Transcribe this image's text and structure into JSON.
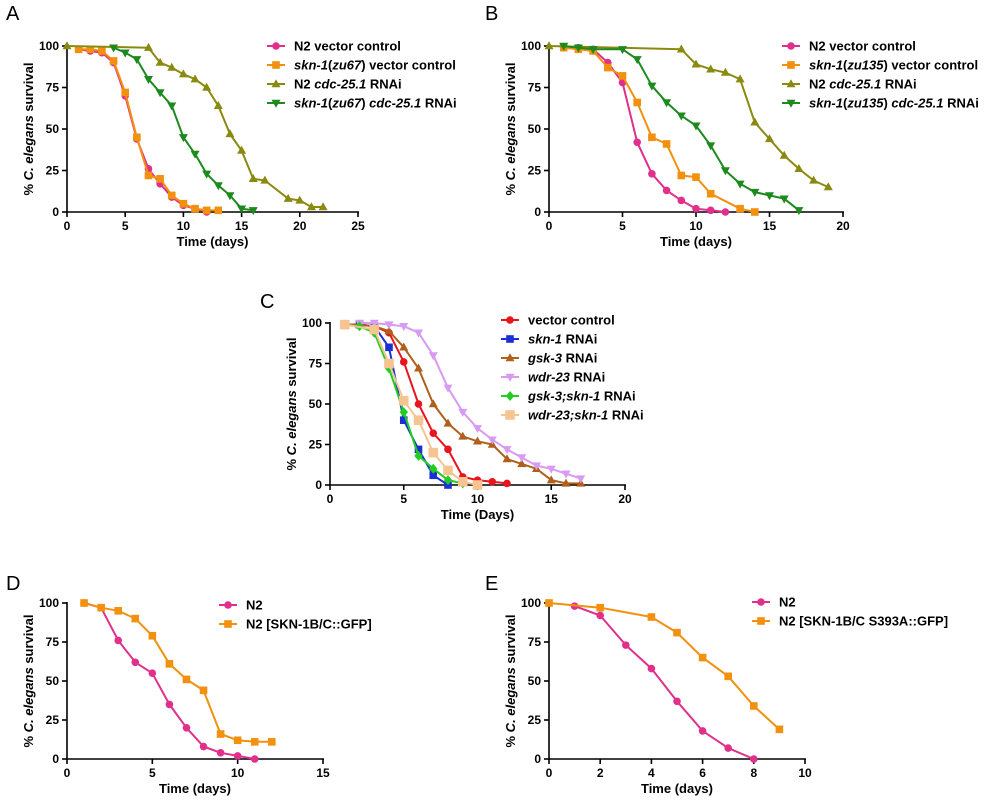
{
  "chart_data": [
    {
      "panel": "A",
      "type": "line",
      "ylabel_parts": [
        [
          "% ",
          false
        ],
        [
          "C. elegans",
          true
        ],
        [
          " survival",
          false
        ]
      ],
      "xlabel": "Time (days)",
      "xlim": [
        0,
        25
      ],
      "ylim": [
        0,
        100
      ],
      "xticks": [
        0,
        5,
        10,
        15,
        20,
        25
      ],
      "yticks": [
        0,
        25,
        50,
        75,
        100
      ],
      "legend": "top-right",
      "series": [
        {
          "name": "N2 vector control",
          "name_parts": [
            [
              "N2 vector control",
              false
            ]
          ],
          "color": "#e0308c",
          "marker": "circle",
          "x": [
            1,
            2,
            3,
            4,
            5,
            6,
            7,
            8,
            9,
            10,
            11,
            12
          ],
          "y": [
            98,
            97,
            96,
            90,
            70,
            44,
            26,
            17,
            9,
            4,
            2,
            0
          ]
        },
        {
          "name": "skn-1(zu67) vector control",
          "name_parts": [
            [
              "skn-1",
              true
            ],
            [
              "(",
              false
            ],
            [
              "zu67",
              true
            ],
            [
              ") vector control",
              false
            ]
          ],
          "color": "#f2900f",
          "marker": "square",
          "x": [
            1,
            2,
            3,
            4,
            5,
            6,
            7,
            8,
            9,
            10,
            11,
            12,
            13
          ],
          "y": [
            98,
            98,
            97,
            91,
            72,
            45,
            22,
            20,
            10,
            5,
            2,
            1,
            1
          ]
        },
        {
          "name": "N2 cdc-25.1 RNAi",
          "name_parts": [
            [
              "N2 ",
              false
            ],
            [
              "cdc-25.1",
              true
            ],
            [
              " RNAi",
              false
            ]
          ],
          "color": "#8a8a10",
          "marker": "triangle-up",
          "x": [
            0,
            7,
            8,
            9,
            10,
            11,
            12,
            13,
            14,
            15,
            16,
            17,
            19,
            20,
            21,
            22
          ],
          "y": [
            100,
            99,
            90,
            87,
            83,
            80,
            75,
            64,
            47,
            37,
            20,
            19,
            8,
            7,
            3,
            3
          ]
        },
        {
          "name": "skn-1(zu67) cdc-25.1 RNAi",
          "name_parts": [
            [
              "skn-1",
              true
            ],
            [
              "(",
              false
            ],
            [
              "zu67",
              true
            ],
            [
              ") ",
              false
            ],
            [
              "cdc-25.1",
              true
            ],
            [
              " RNAi",
              false
            ]
          ],
          "color": "#1c8a1c",
          "marker": "triangle-down",
          "x": [
            4,
            5,
            6,
            7,
            8,
            9,
            10,
            11,
            12,
            13,
            14,
            15,
            16
          ],
          "y": [
            99,
            96,
            92,
            80,
            72,
            64,
            45,
            35,
            23,
            16,
            10,
            2,
            1
          ]
        }
      ]
    },
    {
      "panel": "B",
      "type": "line",
      "ylabel_parts": [
        [
          "% ",
          false
        ],
        [
          "C. elegans",
          true
        ],
        [
          " survival",
          false
        ]
      ],
      "xlabel": "Time (days)",
      "xlim": [
        0,
        20
      ],
      "ylim": [
        0,
        100
      ],
      "xticks": [
        0,
        5,
        10,
        15,
        20
      ],
      "yticks": [
        0,
        25,
        50,
        75,
        100
      ],
      "legend": "top-right",
      "series": [
        {
          "name": "N2 vector control",
          "name_parts": [
            [
              "N2 vector control",
              false
            ]
          ],
          "color": "#e0308c",
          "marker": "circle",
          "x": [
            1,
            2,
            3,
            4,
            5,
            6,
            7,
            8,
            9,
            10,
            11,
            12
          ],
          "y": [
            99,
            99,
            98,
            90,
            78,
            42,
            23,
            13,
            7,
            2,
            1,
            0
          ]
        },
        {
          "name": "skn-1(zu135) vector control",
          "name_parts": [
            [
              "skn-1",
              true
            ],
            [
              "(",
              false
            ],
            [
              "zu135",
              true
            ],
            [
              ") vector control",
              false
            ]
          ],
          "color": "#f2900f",
          "marker": "square",
          "x": [
            1,
            2,
            3,
            4,
            5,
            6,
            7,
            8,
            9,
            10,
            11,
            13,
            14
          ],
          "y": [
            99,
            98,
            97,
            87,
            82,
            66,
            45,
            41,
            22,
            21,
            11,
            2,
            0
          ]
        },
        {
          "name": "N2 cdc-25.1 RNAi",
          "name_parts": [
            [
              "N2 ",
              false
            ],
            [
              "cdc-25.1",
              true
            ],
            [
              " RNAi",
              false
            ]
          ],
          "color": "#8a8a10",
          "marker": "triangle-up",
          "x": [
            0,
            9,
            10,
            11,
            12,
            13,
            14,
            15,
            16,
            17,
            18,
            19
          ],
          "y": [
            100,
            98,
            89,
            86,
            84,
            80,
            54,
            44,
            34,
            26,
            19,
            15
          ]
        },
        {
          "name": "skn-1(zu135) cdc-25.1 RNAi",
          "name_parts": [
            [
              "skn-1",
              true
            ],
            [
              "(",
              false
            ],
            [
              "zu135",
              true
            ],
            [
              ") ",
              false
            ],
            [
              "cdc-25.1",
              true
            ],
            [
              " RNAi",
              false
            ]
          ],
          "color": "#1c8a1c",
          "marker": "triangle-down",
          "x": [
            1,
            2,
            3,
            5,
            6,
            7,
            8,
            9,
            10,
            11,
            12,
            13,
            14,
            15,
            16,
            17
          ],
          "y": [
            100,
            99,
            98,
            98,
            92,
            76,
            66,
            58,
            52,
            40,
            25,
            17,
            12,
            10,
            8,
            1
          ]
        }
      ]
    },
    {
      "panel": "C",
      "type": "line",
      "ylabel_parts": [
        [
          "% ",
          false
        ],
        [
          "C. elegans",
          true
        ],
        [
          " survival",
          false
        ]
      ],
      "xlabel": "Time (Days)",
      "xlim": [
        0,
        20
      ],
      "ylim": [
        0,
        100
      ],
      "xticks": [
        0,
        5,
        10,
        15,
        20
      ],
      "yticks": [
        0,
        25,
        50,
        75,
        100
      ],
      "legend": "top-right",
      "series": [
        {
          "name": "vector control",
          "name_parts": [
            [
              "vector control",
              false
            ]
          ],
          "color": "#e8141e",
          "marker": "circle",
          "x": [
            1,
            2,
            3,
            4,
            5,
            6,
            7,
            8,
            9,
            10,
            11,
            12
          ],
          "y": [
            99,
            99,
            98,
            94,
            76,
            50,
            32,
            22,
            5,
            3,
            2,
            1
          ]
        },
        {
          "name": "skn-1 RNAi",
          "name_parts": [
            [
              "skn-1",
              true
            ],
            [
              " RNAi",
              false
            ]
          ],
          "color": "#1a2fd6",
          "marker": "square",
          "x": [
            1,
            2,
            3,
            4,
            5,
            6,
            7,
            8
          ],
          "y": [
            99,
            99,
            98,
            85,
            40,
            22,
            6,
            0
          ]
        },
        {
          "name": "gsk-3 RNAi",
          "name_parts": [
            [
              "gsk-3",
              true
            ],
            [
              " RNAi",
              false
            ]
          ],
          "color": "#b0601c",
          "marker": "triangle-up",
          "x": [
            1,
            2,
            3,
            4,
            5,
            6,
            7,
            8,
            9,
            10,
            11,
            12,
            13,
            14,
            15,
            16,
            17
          ],
          "y": [
            99,
            99,
            98,
            95,
            85,
            72,
            50,
            38,
            30,
            27,
            25,
            16,
            13,
            10,
            3,
            1,
            1
          ]
        },
        {
          "name": "wdr-23 RNAi",
          "name_parts": [
            [
              "wdr-23",
              true
            ],
            [
              " RNAi",
              false
            ]
          ],
          "color": "#d89af2",
          "marker": "triangle-down",
          "x": [
            2,
            3,
            4,
            5,
            6,
            7,
            8,
            9,
            10,
            11,
            12,
            13,
            14,
            15,
            16,
            17
          ],
          "y": [
            100,
            100,
            99,
            98,
            94,
            80,
            60,
            45,
            35,
            28,
            22,
            17,
            12,
            10,
            7,
            4
          ]
        },
        {
          "name": "gsk-3;skn-1 RNAi",
          "name_parts": [
            [
              "gsk-3;skn-1",
              true
            ],
            [
              " RNAi",
              false
            ]
          ],
          "color": "#22cc22",
          "marker": "diamond",
          "x": [
            1,
            2,
            3,
            4,
            5,
            6,
            7,
            8,
            9
          ],
          "y": [
            99,
            98,
            94,
            72,
            45,
            18,
            10,
            3,
            1
          ]
        },
        {
          "name": "wdr-23;skn-1 RNAi",
          "name_parts": [
            [
              "wdr-23;skn-1",
              true
            ],
            [
              " RNAi",
              false
            ]
          ],
          "color": "#f5c490",
          "marker": "square-big",
          "x": [
            1,
            3,
            4,
            5,
            6,
            7,
            8,
            9,
            10
          ],
          "y": [
            99,
            96,
            75,
            52,
            40,
            20,
            9,
            2,
            0
          ]
        }
      ]
    },
    {
      "panel": "D",
      "type": "line",
      "ylabel_parts": [
        [
          "% ",
          false
        ],
        [
          "C. elegans",
          true
        ],
        [
          " survival",
          false
        ]
      ],
      "xlabel": "Time (days)",
      "xlim": [
        0,
        15
      ],
      "ylim": [
        0,
        100
      ],
      "xticks": [
        0,
        5,
        10,
        15
      ],
      "yticks": [
        0,
        25,
        50,
        75,
        100
      ],
      "legend": "top-right",
      "series": [
        {
          "name": "N2",
          "name_parts": [
            [
              "N2",
              false
            ]
          ],
          "color": "#e0308c",
          "marker": "circle",
          "x": [
            1,
            2,
            3,
            4,
            5,
            6,
            7,
            8,
            9,
            10,
            11
          ],
          "y": [
            100,
            97,
            76,
            62,
            55,
            35,
            20,
            8,
            4,
            2,
            0
          ]
        },
        {
          "name": "N2 [SKN-1B/C::GFP]",
          "name_parts": [
            [
              "N2 [SKN-1B/C::GFP]",
              false
            ]
          ],
          "color": "#f2900f",
          "marker": "square",
          "x": [
            1,
            2,
            3,
            4,
            5,
            6,
            7,
            8,
            9,
            10,
            11,
            12
          ],
          "y": [
            100,
            97,
            95,
            90,
            79,
            61,
            51,
            44,
            16,
            12,
            11,
            11
          ]
        }
      ]
    },
    {
      "panel": "E",
      "type": "line",
      "ylabel_parts": [
        [
          "% ",
          false
        ],
        [
          "C. elegans",
          true
        ],
        [
          " survival",
          false
        ]
      ],
      "xlabel": "Time (days)",
      "xlim": [
        0,
        10
      ],
      "ylim": [
        0,
        100
      ],
      "xticks": [
        0,
        2,
        4,
        6,
        8,
        10
      ],
      "yticks": [
        0,
        25,
        50,
        75,
        100
      ],
      "legend": "top-right",
      "series": [
        {
          "name": "N2",
          "name_parts": [
            [
              "N2",
              false
            ]
          ],
          "color": "#e0308c",
          "marker": "circle",
          "x": [
            1,
            2,
            3,
            4,
            5,
            6,
            7,
            8
          ],
          "y": [
            98,
            92,
            73,
            58,
            37,
            18,
            7,
            0
          ]
        },
        {
          "name": "N2 [SKN-1B/C S393A::GFP]",
          "name_parts": [
            [
              "N2 [SKN-1B/C S393A::GFP]",
              false
            ]
          ],
          "color": "#f2900f",
          "marker": "square",
          "x": [
            0,
            2,
            4,
            5,
            6,
            7,
            8,
            9
          ],
          "y": [
            100,
            97,
            91,
            81,
            65,
            53,
            34,
            19
          ]
        }
      ]
    }
  ]
}
